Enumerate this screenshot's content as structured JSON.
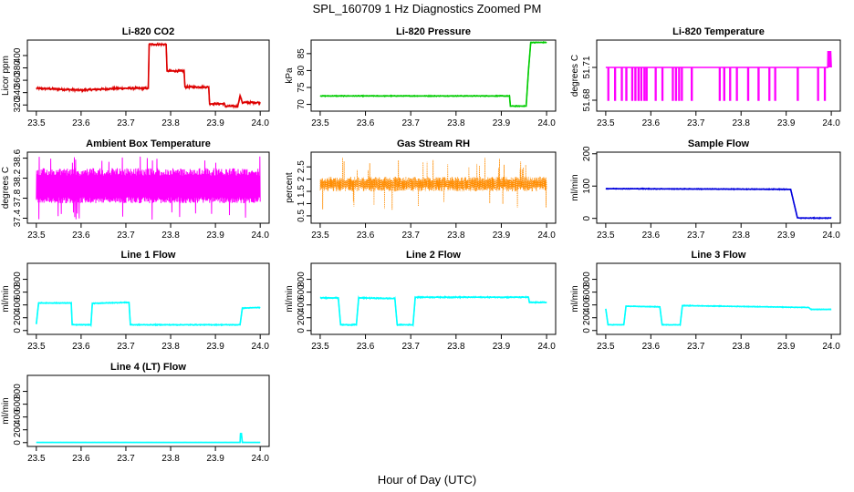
{
  "figure": {
    "title": "SPL_160709  1 Hz Diagnostics Zoomed PM",
    "xlabel": "Hour of Day (UTC)"
  },
  "chart_data": [
    {
      "type": "line",
      "title": "Li-820 CO2",
      "ylabel": "Licor ppm",
      "color": "#dd0000",
      "xlim": [
        23.5,
        24.0
      ],
      "ylim": [
        310,
        425
      ],
      "xticks": [
        "23.5",
        "23.6",
        "23.7",
        "23.8",
        "23.9",
        "24.0"
      ],
      "yticks": [
        320,
        340,
        360,
        380,
        400
      ],
      "noise": 2,
      "x": [
        23.5,
        23.6,
        23.688,
        23.75,
        23.752,
        23.79,
        23.792,
        23.83,
        23.832,
        23.885,
        23.887,
        23.92,
        23.922,
        23.95,
        23.955,
        23.96,
        24.0
      ],
      "y": [
        347,
        344,
        347,
        347,
        418,
        418,
        375,
        375,
        349,
        349,
        322,
        322,
        318,
        318,
        335,
        324,
        324
      ]
    },
    {
      "type": "line",
      "title": "Li-820 Pressure",
      "ylabel": "kPa",
      "color": "#00cc00",
      "xlim": [
        23.5,
        24.0
      ],
      "ylim": [
        68,
        89
      ],
      "xticks": [
        "23.5",
        "23.6",
        "23.7",
        "23.8",
        "23.9",
        "24.0"
      ],
      "yticks": [
        70,
        75,
        80,
        85
      ],
      "noise": 0.15,
      "x": [
        23.5,
        23.918,
        23.92,
        23.955,
        23.96,
        23.965,
        24.0
      ],
      "y": [
        72.5,
        72.5,
        69.5,
        69.5,
        80,
        88.3,
        88.3
      ]
    },
    {
      "type": "line",
      "title": "Li-820 Temperature",
      "ylabel": "degrees C",
      "color": "#ff00ff",
      "xlim": [
        23.5,
        24.0
      ],
      "ylim": [
        51.67,
        51.735
      ],
      "xticks": [
        "23.5",
        "23.6",
        "23.7",
        "23.8",
        "23.9",
        "24.0"
      ],
      "yticks": [
        51.68,
        51.71
      ],
      "noise": 0,
      "base": 51.71,
      "low": 51.68,
      "high": 51.725,
      "drops": [
        23.505,
        23.52,
        23.535,
        23.545,
        23.558,
        23.565,
        23.572,
        23.578,
        23.585,
        23.59,
        23.61,
        23.625,
        23.648,
        23.655,
        23.662,
        23.668,
        23.69,
        23.752,
        23.762,
        23.775,
        23.79,
        23.815,
        23.838,
        23.862,
        23.875,
        23.925,
        23.97,
        23.985
      ],
      "spike_start": 23.992
    },
    {
      "type": "line",
      "title": "Ambient Box Temperature",
      "ylabel": "degrees C",
      "color": "#ff00ff",
      "xlim": [
        23.5,
        24.0
      ],
      "ylim": [
        37.3,
        38.72
      ],
      "xticks": [
        "23.5",
        "23.6",
        "23.7",
        "23.8",
        "23.9",
        "24.0"
      ],
      "yticks": [
        37.4,
        37.8,
        38.2,
        38.6
      ],
      "band": [
        37.7,
        38.4
      ]
    },
    {
      "type": "scatter",
      "title": "Gas Stream RH",
      "ylabel": "percent",
      "color": "#ff8c00",
      "xlim": [
        23.5,
        24.0
      ],
      "ylim": [
        0.2,
        3.1
      ],
      "xticks": [
        "23.5",
        "23.6",
        "23.7",
        "23.8",
        "23.9",
        "24.0"
      ],
      "yticks": [
        0.5,
        1.0,
        1.5,
        2.0,
        2.5
      ],
      "band": [
        1.5,
        2.1
      ]
    },
    {
      "type": "line",
      "title": "Sample Flow",
      "ylabel": "ml/min",
      "color": "#0000dd",
      "xlim": [
        23.5,
        24.0
      ],
      "ylim": [
        -15,
        205
      ],
      "xticks": [
        "23.5",
        "23.6",
        "23.7",
        "23.8",
        "23.9",
        "24.0"
      ],
      "yticks": [
        0,
        100,
        200
      ],
      "noise": 1.5,
      "x": [
        23.5,
        23.91,
        23.915,
        23.925,
        23.93,
        24.0
      ],
      "y": [
        92,
        90,
        60,
        2,
        1,
        1
      ]
    },
    {
      "type": "line",
      "title": "Line 1 Flow",
      "ylabel": "ml/min",
      "color": "#00ffff",
      "xlim": [
        23.5,
        24.0
      ],
      "ylim": [
        -60,
        1050
      ],
      "xticks": [
        "23.5",
        "23.6",
        "23.7",
        "23.8",
        "23.9",
        "24.0"
      ],
      "yticks": [
        0,
        200,
        400,
        600,
        800
      ],
      "noise": 8,
      "x": [
        23.5,
        23.505,
        23.578,
        23.58,
        23.622,
        23.625,
        23.707,
        23.71,
        23.955,
        23.96,
        24.0
      ],
      "y": [
        100,
        430,
        430,
        90,
        90,
        425,
        440,
        90,
        90,
        350,
        360
      ]
    },
    {
      "type": "line",
      "title": "Line 2 Flow",
      "ylabel": "ml/min",
      "color": "#00ffff",
      "xlim": [
        23.5,
        24.0
      ],
      "ylim": [
        -60,
        1050
      ],
      "xticks": [
        "23.5",
        "23.6",
        "23.7",
        "23.8",
        "23.9",
        "24.0"
      ],
      "yticks": [
        0,
        200,
        400,
        600,
        800
      ],
      "noise": 10,
      "x": [
        23.5,
        23.54,
        23.545,
        23.58,
        23.585,
        23.665,
        23.67,
        23.705,
        23.71,
        23.96,
        23.962,
        24.0
      ],
      "y": [
        510,
        510,
        90,
        90,
        510,
        500,
        90,
        90,
        520,
        520,
        440,
        440
      ]
    },
    {
      "type": "line",
      "title": "Line 3 Flow",
      "ylabel": "ml/min",
      "color": "#00ffff",
      "xlim": [
        23.5,
        24.0
      ],
      "ylim": [
        -60,
        1050
      ],
      "xticks": [
        "23.5",
        "23.6",
        "23.7",
        "23.8",
        "23.9",
        "24.0"
      ],
      "yticks": [
        0,
        200,
        400,
        600,
        800
      ],
      "noise": 6,
      "x": [
        23.5,
        23.505,
        23.54,
        23.545,
        23.62,
        23.625,
        23.665,
        23.67,
        23.95,
        23.955,
        24.0
      ],
      "y": [
        340,
        90,
        90,
        380,
        370,
        90,
        90,
        390,
        360,
        330,
        330
      ]
    },
    {
      "type": "line",
      "title": "Line 4 (LT) Flow",
      "ylabel": "ml/min",
      "color": "#00ffff",
      "xlim": [
        23.5,
        24.0
      ],
      "ylim": [
        -60,
        1050
      ],
      "xticks": [
        "23.5",
        "23.6",
        "23.7",
        "23.8",
        "23.9",
        "24.0"
      ],
      "yticks": [
        0,
        200,
        400,
        600,
        800
      ],
      "noise": 1,
      "x": [
        23.5,
        23.955,
        23.956,
        23.958,
        23.96,
        24.0
      ],
      "y": [
        3,
        3,
        140,
        140,
        3,
        3
      ]
    }
  ]
}
